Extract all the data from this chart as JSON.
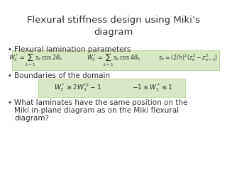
{
  "title": "Flexural stiffness design using Miki’s\ndiagram",
  "title_fontsize": 9.5,
  "title_color": "#333333",
  "bg_color": "#ffffff",
  "bullet_color": "#333333",
  "bullet1": "Flexural lamination parameters",
  "formula1_a": "$W_1^* = \\sum_{k=1}^{n} s_k\\,\\cos 2\\theta_k$",
  "formula1_b": "$W_3^* = \\sum_{k=1}^{n} s_k\\,\\cos 4\\theta_k$",
  "formula1_c": "$s_k = (2/h)^2(z_k^2 - z_{k-1}^2)$",
  "bullet2": "Boundaries of the domain",
  "formula2_a": "$W_3^* \\geq 2W_1^{*2} - 1$",
  "formula2_b": "$-1 \\leq W_1^* \\leq 1$",
  "bullet3_lines": [
    "What laminates have the same position on the",
    "Miki in-plane diagram as on the Miki flexural",
    "diagram?"
  ],
  "body_fontsize": 7.5,
  "formula_fontsize": 5.8,
  "formula_fontsize2": 6.5,
  "formula_bg": "#d9e8c4",
  "formula_border": "#b8d196"
}
